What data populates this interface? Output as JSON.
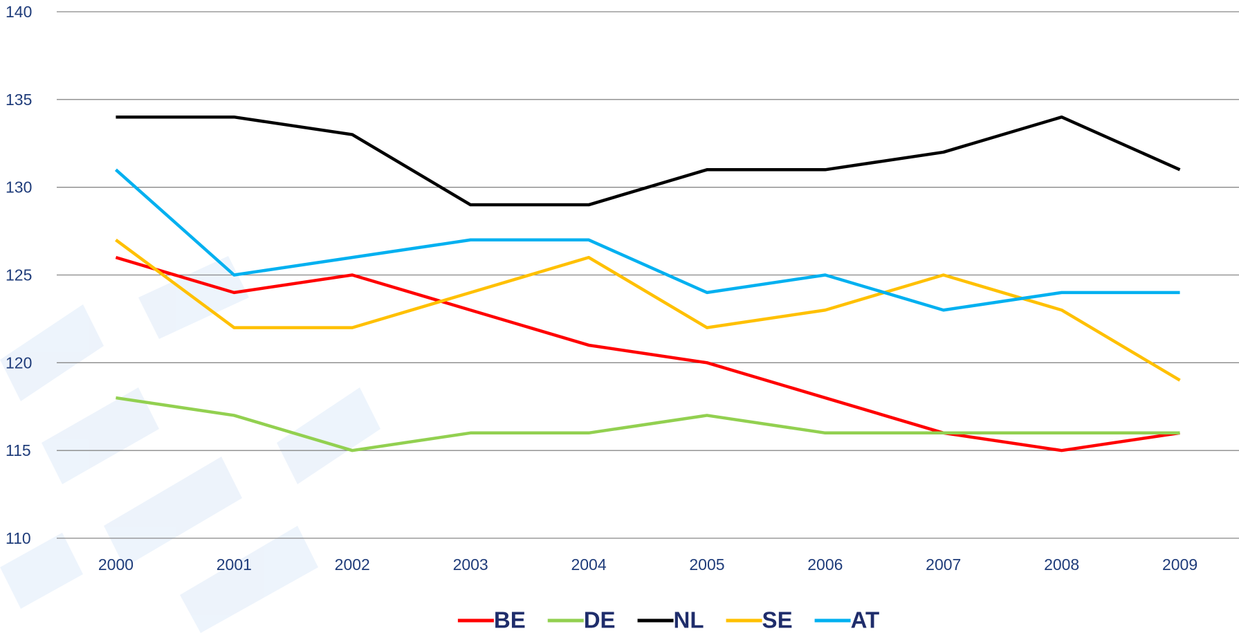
{
  "chart_data": {
    "type": "line",
    "categories": [
      "2000",
      "2001",
      "2002",
      "2003",
      "2004",
      "2005",
      "2006",
      "2007",
      "2008",
      "2009"
    ],
    "series": [
      {
        "name": "BE",
        "color": "#ff0000",
        "values": [
          126,
          124,
          125,
          123,
          121,
          120,
          118,
          116,
          115,
          116
        ]
      },
      {
        "name": "DE",
        "color": "#92d050",
        "values": [
          118,
          117,
          115,
          116,
          116,
          117,
          116,
          116,
          116,
          116
        ]
      },
      {
        "name": "NL",
        "color": "#000000",
        "values": [
          134,
          134,
          133,
          129,
          129,
          131,
          131,
          132,
          134,
          131
        ]
      },
      {
        "name": "SE",
        "color": "#ffc000",
        "values": [
          127,
          122,
          122,
          124,
          126,
          122,
          123,
          125,
          123,
          119
        ]
      },
      {
        "name": "AT",
        "color": "#00b0f0",
        "values": [
          131,
          125,
          126,
          127,
          127,
          124,
          125,
          123,
          124,
          124
        ]
      }
    ],
    "ylim": [
      110,
      140
    ],
    "yticks": [
      110,
      115,
      120,
      125,
      130,
      135,
      140
    ],
    "grid": true,
    "legend": "bottom"
  }
}
